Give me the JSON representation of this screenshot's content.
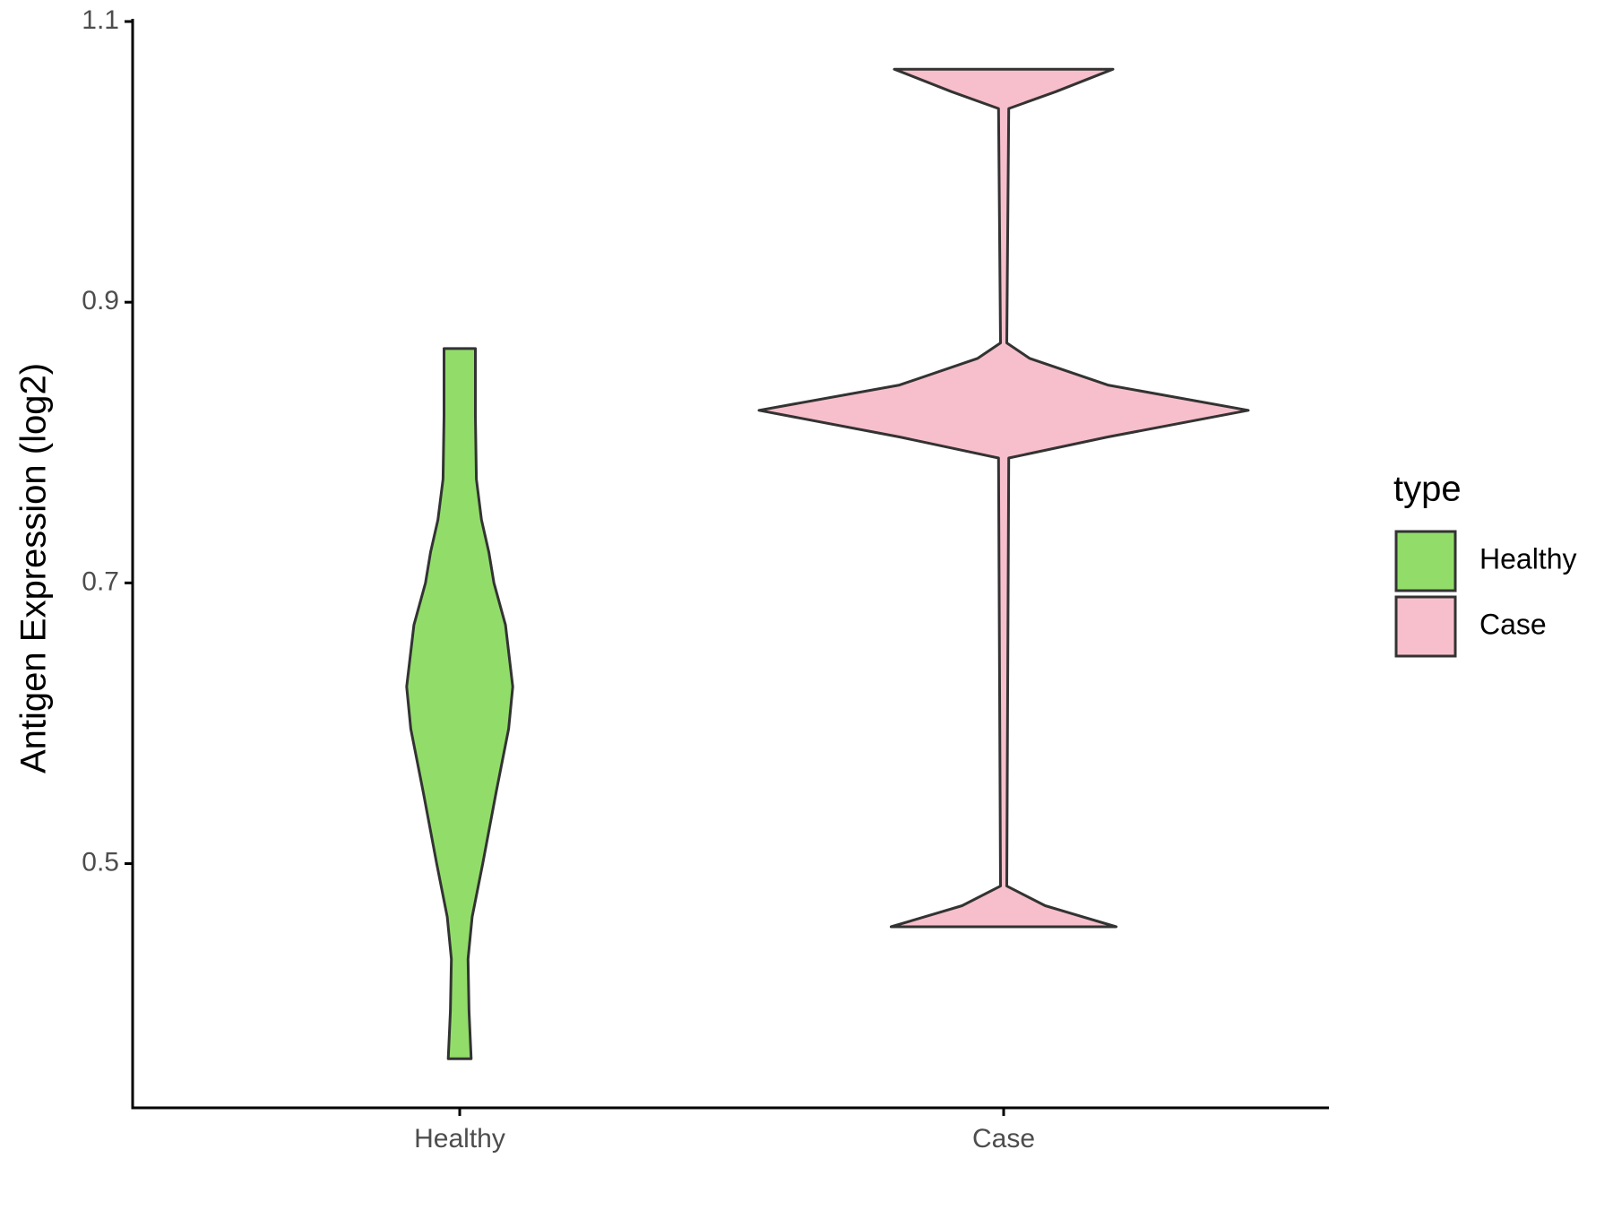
{
  "chart_data": {
    "type": "violin",
    "y_label": "Antigen Expression (log2)",
    "categories": [
      "Healthy",
      "Case"
    ],
    "series": [
      {
        "name": "Healthy",
        "color": "#92dd6a",
        "values": [
          0.867,
          0.819,
          0.774,
          0.745,
          0.722,
          0.7,
          0.67,
          0.626,
          0.596,
          0.551,
          0.5,
          0.462,
          0.432,
          0.395,
          0.361
        ],
        "density": [
          0.064,
          0.064,
          0.068,
          0.089,
          0.119,
          0.14,
          0.187,
          0.217,
          0.2,
          0.149,
          0.094,
          0.051,
          0.034,
          0.038,
          0.047
        ]
      },
      {
        "name": "Case",
        "color": "#f7bfcb",
        "values": [
          1.066,
          1.05,
          1.038,
          0.871,
          0.86,
          0.841,
          0.823,
          0.804,
          0.789,
          0.484,
          0.47,
          0.455
        ],
        "density": [
          0.447,
          0.213,
          0.021,
          0.013,
          0.106,
          0.426,
          1,
          0.426,
          0.021,
          0.013,
          0.17,
          0.46
        ]
      }
    ],
    "ylim": [
      0.326,
      1.1
    ],
    "yticks": [
      0.5,
      0.7,
      0.9,
      1.1
    ],
    "legend_title": "type",
    "legend": "right"
  }
}
